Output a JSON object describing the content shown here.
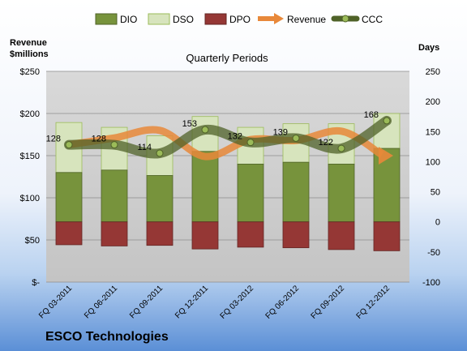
{
  "chart_data": {
    "type": "bar",
    "title": "Quarterly Periods",
    "company": "ESCO Technologies",
    "y_left_label_line1": "Revenue",
    "y_left_label_line2": "$millions",
    "y_right_label": "Days",
    "categories": [
      "FQ 03-2011",
      "FQ 06-2011",
      "FQ 09-2011",
      "FQ 12-2011",
      "FQ 03-2012",
      "FQ 06-2012",
      "FQ 09-2012",
      "FQ 12-2012"
    ],
    "y_left_ticks": [
      "$-",
      "$50",
      "$100",
      "$150",
      "$200",
      "$250"
    ],
    "y_left_lim": [
      0,
      250
    ],
    "y_right_ticks": [
      "-100",
      "-50",
      "0",
      "50",
      "100",
      "150",
      "200",
      "250"
    ],
    "y_right_lim": [
      -100,
      250
    ],
    "series": [
      {
        "name": "DIO",
        "kind": "bar",
        "axis": "right",
        "color": "#77933c",
        "values": [
          82,
          86,
          77,
          117,
          96,
          99,
          96,
          122
        ]
      },
      {
        "name": "DSO",
        "kind": "bar",
        "axis": "right",
        "color": "#d7e4bd",
        "values": [
          83,
          71,
          66,
          58,
          61,
          64,
          67,
          58
        ]
      },
      {
        "name": "DPO",
        "kind": "bar",
        "axis": "right",
        "color": "#953735",
        "values": [
          -38,
          -40,
          -39,
          -45,
          -42,
          -43,
          -46,
          -48
        ]
      },
      {
        "name": "Revenue",
        "kind": "line",
        "axis": "left",
        "color": "#e8883a",
        "values": [
          163,
          171,
          180,
          149,
          169,
          168,
          179,
          150
        ]
      },
      {
        "name": "CCC",
        "kind": "line",
        "axis": "right",
        "color": "#4f6228",
        "values": [
          128,
          128,
          114,
          153,
          132,
          139,
          122,
          168
        ]
      }
    ],
    "ccc_labels": [
      "128",
      "128",
      "114",
      "153",
      "132",
      "139",
      "122",
      "168"
    ],
    "legend_position": "top",
    "grid": true
  }
}
